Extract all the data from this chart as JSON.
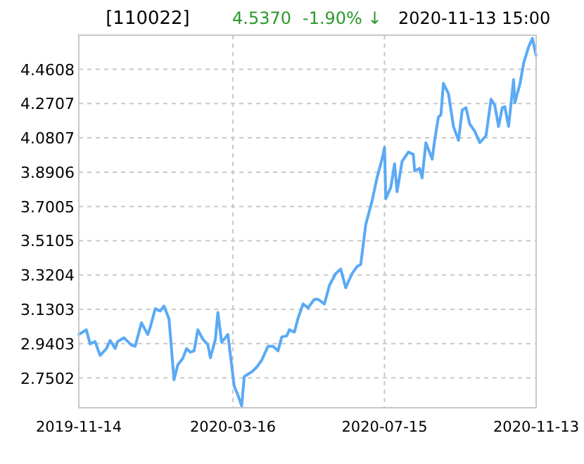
{
  "chart_data": {
    "type": "line",
    "title": "[110022]",
    "annotations": [
      "4.5370",
      "-1.90% ↓",
      "2020-11-13 15:00"
    ],
    "xlim": [
      "2019-11-14",
      "2020-11-13"
    ],
    "xticks": [
      "2019-11-14",
      "2020-03-16",
      "2020-07-15",
      "2020-11-13"
    ],
    "ylim": [
      2.585,
      4.65
    ],
    "yticks": [
      2.7502,
      2.9403,
      3.1303,
      3.3204,
      3.5105,
      3.7005,
      3.8906,
      4.0807,
      4.2707,
      4.4608
    ],
    "grid": true,
    "line_style": "solid",
    "marker": "none",
    "series": [
      {
        "color": "#5aaaf5",
        "x": [
          "2019-11-14",
          "2019-11-20",
          "2019-11-23",
          "2019-11-27",
          "2019-12-01",
          "2019-12-06",
          "2019-12-09",
          "2019-12-13",
          "2019-12-15",
          "2019-12-20",
          "2019-12-26",
          "2019-12-29",
          "2020-01-03",
          "2020-01-08",
          "2020-01-10",
          "2020-01-14",
          "2020-01-18",
          "2020-01-21",
          "2020-01-25",
          "2020-01-29",
          "2020-02-01",
          "2020-02-05",
          "2020-02-08",
          "2020-02-11",
          "2020-02-14",
          "2020-02-17",
          "2020-02-21",
          "2020-02-25",
          "2020-02-27",
          "2020-03-02",
          "2020-03-04",
          "2020-03-07",
          "2020-03-12",
          "2020-03-17",
          "2020-03-20",
          "2020-03-23",
          "2020-03-25",
          "2020-03-28",
          "2020-03-31",
          "2020-04-04",
          "2020-04-08",
          "2020-04-13",
          "2020-04-17",
          "2020-04-21",
          "2020-04-24",
          "2020-04-28",
          "2020-04-30",
          "2020-05-04",
          "2020-05-07",
          "2020-05-11",
          "2020-05-15",
          "2020-05-20",
          "2020-05-23",
          "2020-05-28",
          "2020-06-01",
          "2020-06-06",
          "2020-06-10",
          "2020-06-14",
          "2020-06-19",
          "2020-06-23",
          "2020-06-26",
          "2020-06-30",
          "2020-07-05",
          "2020-07-09",
          "2020-07-13",
          "2020-07-15",
          "2020-07-16",
          "2020-07-20",
          "2020-07-23",
          "2020-07-25",
          "2020-07-29",
          "2020-08-03",
          "2020-08-07",
          "2020-08-08",
          "2020-08-12",
          "2020-08-14",
          "2020-08-17",
          "2020-08-22",
          "2020-08-24",
          "2020-08-27",
          "2020-08-29",
          "2020-08-31",
          "2020-09-04",
          "2020-09-08",
          "2020-09-12",
          "2020-09-15",
          "2020-09-18",
          "2020-09-21",
          "2020-09-25",
          "2020-09-29",
          "2020-10-04",
          "2020-10-08",
          "2020-10-11",
          "2020-10-14",
          "2020-10-17",
          "2020-10-19",
          "2020-10-22",
          "2020-10-26",
          "2020-10-27",
          "2020-10-31",
          "2020-11-03",
          "2020-11-07",
          "2020-11-10",
          "2020-11-13"
        ],
        "values": [
          2.991,
          3.017,
          2.939,
          2.952,
          2.875,
          2.913,
          2.958,
          2.913,
          2.952,
          2.973,
          2.932,
          2.926,
          3.056,
          2.991,
          3.03,
          3.134,
          3.121,
          3.149,
          3.077,
          2.74,
          2.823,
          2.859,
          2.913,
          2.893,
          2.9,
          3.017,
          2.965,
          2.934,
          2.862,
          2.965,
          3.113,
          2.947,
          2.991,
          2.706,
          2.654,
          2.595,
          2.758,
          2.771,
          2.784,
          2.81,
          2.849,
          2.926,
          2.926,
          2.9,
          2.978,
          2.983,
          3.017,
          3.004,
          3.082,
          3.16,
          3.139,
          3.186,
          3.186,
          3.16,
          3.263,
          3.328,
          3.354,
          3.25,
          3.328,
          3.367,
          3.38,
          3.6,
          3.73,
          3.859,
          3.963,
          4.028,
          3.743,
          3.807,
          3.937,
          3.782,
          3.95,
          4.002,
          3.989,
          3.898,
          3.911,
          3.859,
          4.054,
          3.963,
          4.067,
          4.196,
          4.209,
          4.383,
          4.326,
          4.144,
          4.067,
          4.235,
          4.248,
          4.157,
          4.118,
          4.054,
          4.093,
          4.295,
          4.261,
          4.144,
          4.248,
          4.253,
          4.144,
          4.404,
          4.274,
          4.378,
          4.494,
          4.585,
          4.632,
          4.537
        ]
      }
    ]
  }
}
